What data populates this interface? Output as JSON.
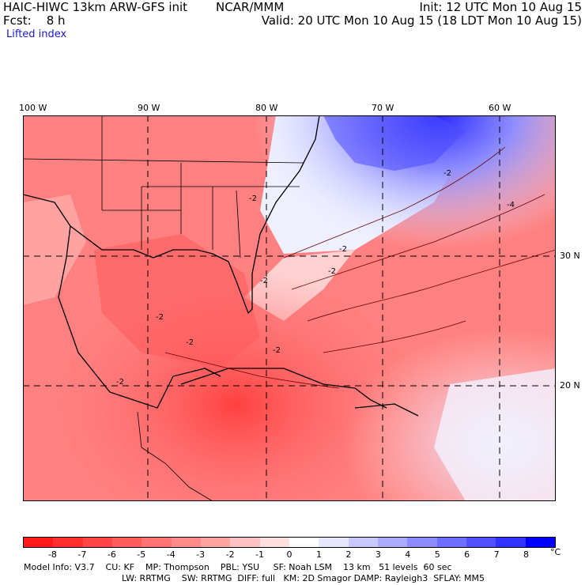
{
  "header": {
    "model_title": "HAIC-HIWC 13km ARW-GFS init",
    "center": "NCAR/MMM",
    "init": "Init: 12 UTC Mon 10 Aug 15",
    "fcst": "Fcst:    8 h",
    "valid": "Valid: 20 UTC Mon 10 Aug 15 (18 LDT Mon 10 Aug 15)",
    "field": "Lifted index"
  },
  "lon_labels": [
    "100 W",
    "90 W",
    "80 W",
    "70 W",
    "60 W"
  ],
  "lat_labels": [
    "30 N",
    "20 N"
  ],
  "contour_labels": [
    "-2",
    "-2",
    "-2",
    "-2",
    "-2",
    "-2",
    "-2",
    "-4",
    "-2",
    "-2"
  ],
  "colorbar": {
    "labels": [
      "-8",
      "-7",
      "-6",
      "-5",
      "-4",
      "-3",
      "-2",
      "-1",
      "0",
      "1",
      "2",
      "3",
      "4",
      "5",
      "6",
      "7",
      "8"
    ],
    "unit": "°C",
    "colors": [
      "#ff1a1a",
      "#ff2e2e",
      "#ff4545",
      "#ff5c5c",
      "#ff7373",
      "#ff8a8a",
      "#ffa3a3",
      "#ffc2c2",
      "#ffdede",
      "#ffffff",
      "#e6e6ff",
      "#c8c8ff",
      "#aaaaff",
      "#8c8cff",
      "#6e6eff",
      "#5050ff",
      "#3232ff",
      "#0000ff"
    ]
  },
  "footer": {
    "line1": "Model Info: V3.7    CU: KF    MP: Thompson    PBL: YSU     SF: Noah LSM    13 km   51 levels  60 sec",
    "line2": "LW: RRTMG    SW: RRTMG  DIFF: full   KM: 2D Smagor DAMP: Rayleigh3  SFLAY: MM5"
  }
}
